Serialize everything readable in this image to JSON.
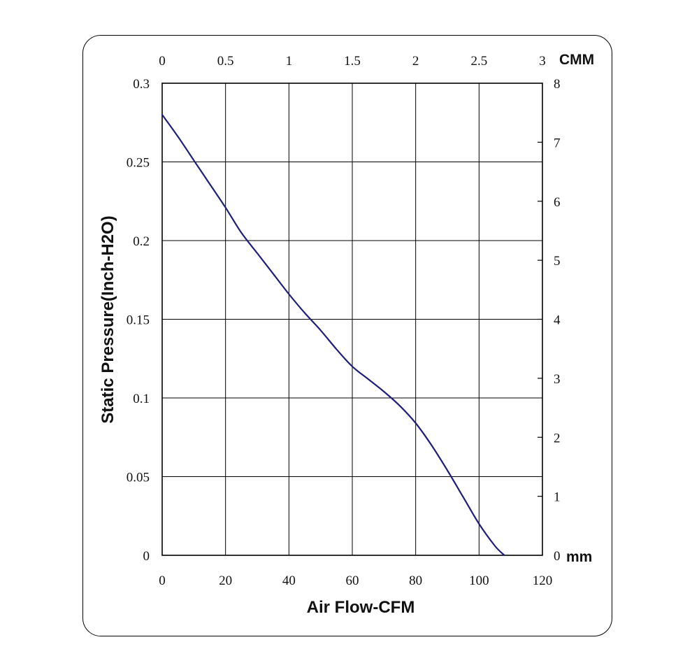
{
  "chart_data": {
    "type": "line",
    "xlabel": "Air Flow-CFM",
    "ylabel": "Static Pressure(Inch-H2O)",
    "xlim": [
      0,
      120
    ],
    "ylim": [
      0,
      0.3
    ],
    "x_ticks": [
      "0",
      "20",
      "40",
      "60",
      "80",
      "100",
      "120"
    ],
    "y_ticks": [
      "0",
      "0.05",
      "0.1",
      "0.15",
      "0.2",
      "0.25",
      "0.3"
    ],
    "top_axis": {
      "unit_label": "CMM",
      "lim": [
        0,
        3
      ],
      "ticks": [
        "0",
        "0.5",
        "1",
        "1.5",
        "2",
        "2.5",
        "3"
      ]
    },
    "right_axis": {
      "unit_label": "mm",
      "lim": [
        0,
        8
      ],
      "ticks": [
        "0",
        "1",
        "2",
        "3",
        "4",
        "5",
        "6",
        "7",
        "8"
      ]
    },
    "grid": true,
    "series": [
      {
        "color": "#1f1f7a",
        "x": [
          0,
          5,
          10,
          15,
          20,
          25,
          30,
          35,
          40,
          45,
          50,
          55,
          60,
          65,
          70,
          75,
          80,
          85,
          90,
          95,
          100,
          105,
          108
        ],
        "y": [
          0.28,
          0.266,
          0.251,
          0.236,
          0.221,
          0.205,
          0.192,
          0.179,
          0.166,
          0.154,
          0.143,
          0.131,
          0.12,
          0.112,
          0.104,
          0.095,
          0.084,
          0.07,
          0.054,
          0.037,
          0.02,
          0.006,
          0.0
        ]
      }
    ]
  }
}
